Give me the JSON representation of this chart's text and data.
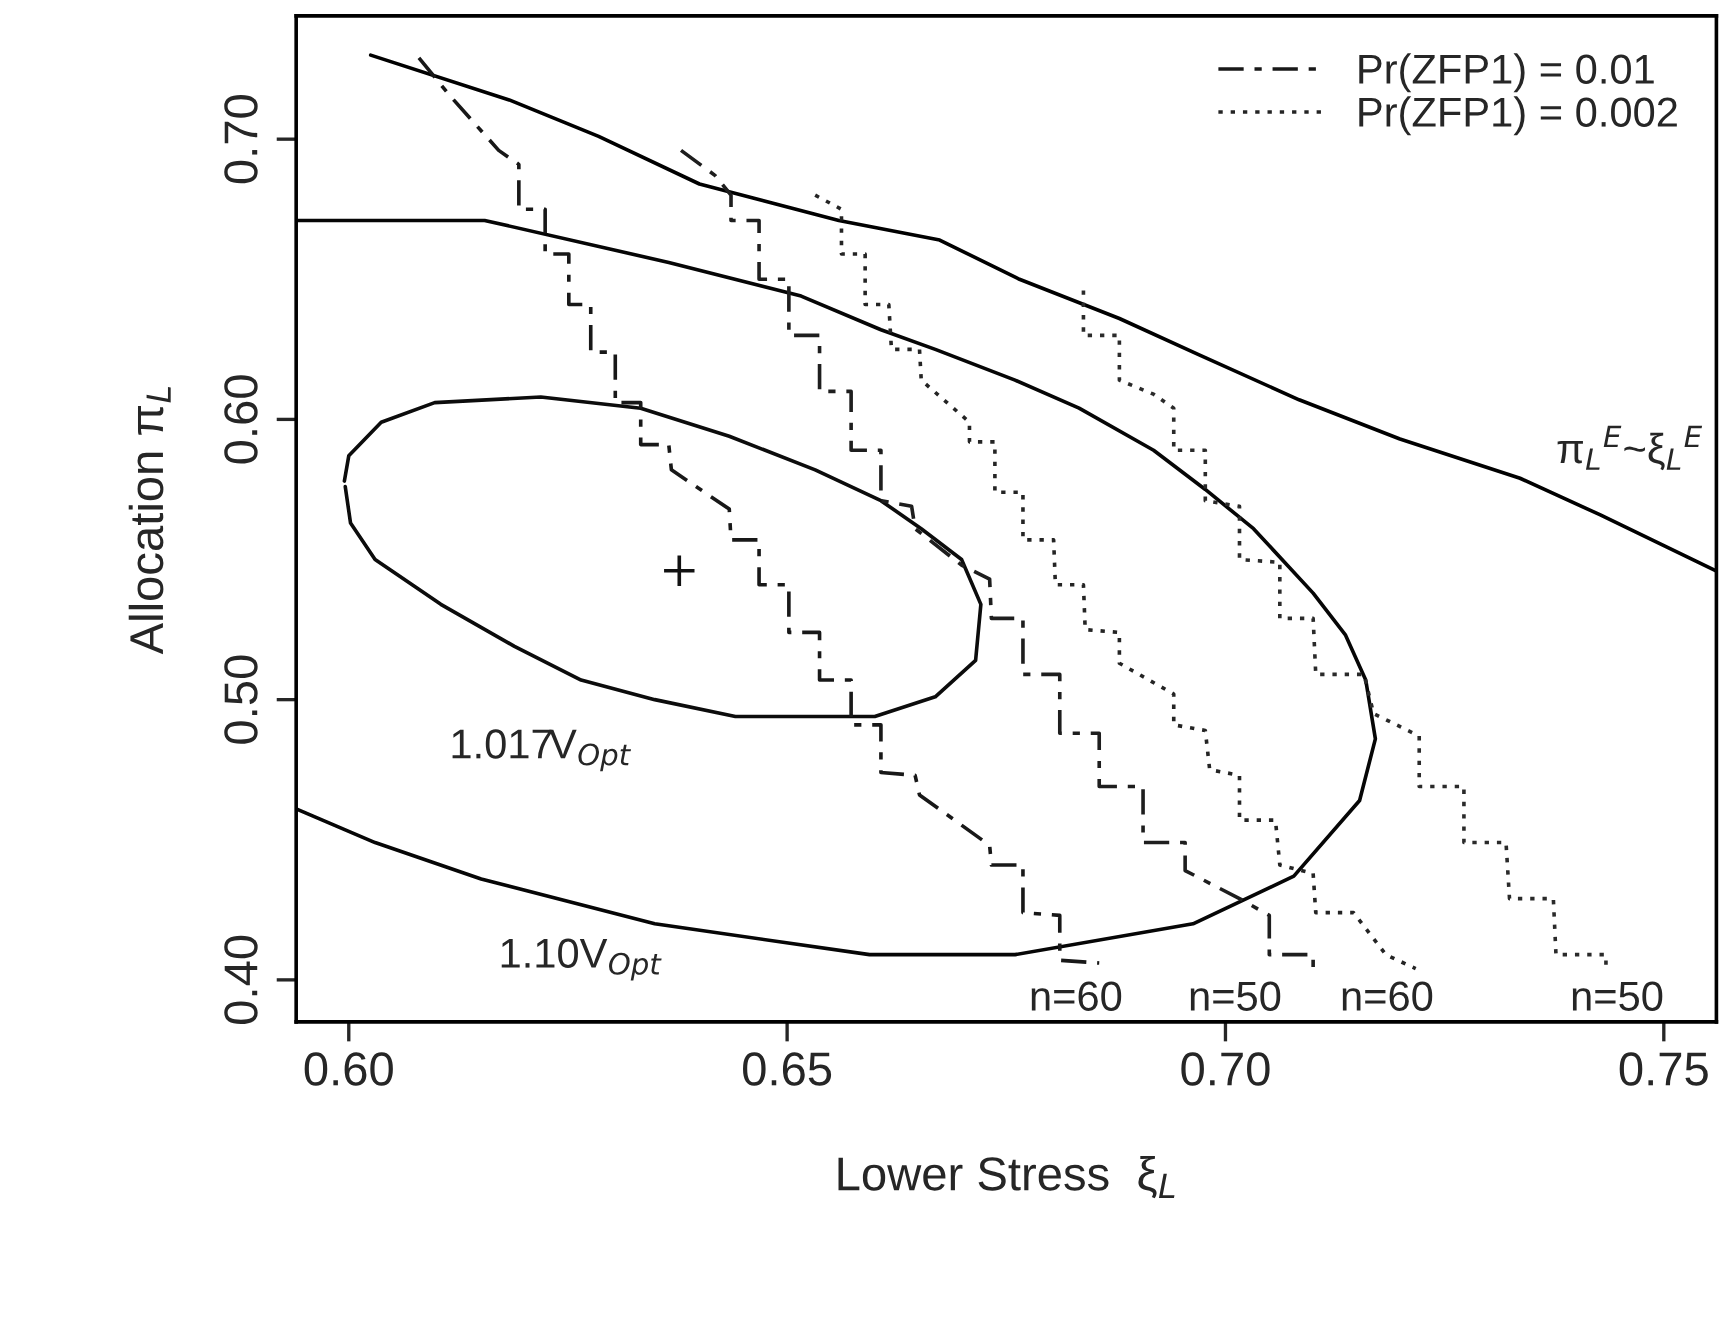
{
  "chart_data": {
    "type": "line",
    "xlabel": "Lower Stress  ξ$_{L}$",
    "ylabel": "Allocation π$_{L}$",
    "xlim": [
      0.594,
      0.756
    ],
    "ylim": [
      0.385,
      0.744
    ],
    "xticks": [
      {
        "value": 0.6,
        "label": "0.60"
      },
      {
        "value": 0.65,
        "label": "0.65"
      },
      {
        "value": 0.7,
        "label": "0.70"
      },
      {
        "value": 0.75,
        "label": "0.75"
      }
    ],
    "yticks": [
      {
        "value": 0.4,
        "label": "0.40"
      },
      {
        "value": 0.5,
        "label": "0.50"
      },
      {
        "value": 0.6,
        "label": "0.60"
      },
      {
        "value": 0.7,
        "label": "0.70"
      }
    ],
    "grid": false,
    "legend": "top right",
    "series": [
      {
        "line_style": "solid",
        "color": "#000000",
        "x": [
          0.6025,
          0.6183,
          0.6285,
          0.64,
          0.6559,
          0.6674,
          0.6765,
          0.6879,
          0.697,
          0.7084,
          0.7199,
          0.7336,
          0.7427,
          0.7559
        ],
        "values": [
          0.73,
          0.714,
          0.701,
          0.684,
          0.671,
          0.664,
          0.65,
          0.636,
          0.623,
          0.607,
          0.593,
          0.579,
          0.566,
          0.546
        ]
      },
      {
        "line_style": "solid",
        "color": "#060606",
        "x": [
          0.594,
          0.6155,
          0.6365,
          0.6516,
          0.6607,
          0.6669,
          0.676,
          0.6833,
          0.6918,
          0.6977,
          0.7032,
          0.71,
          0.7137,
          0.716,
          0.7171,
          0.7153,
          0.7078,
          0.6963,
          0.676,
          0.6594,
          0.6349,
          0.6151,
          0.603,
          0.594
        ],
        "values": [
          0.671,
          0.671,
          0.656,
          0.644,
          0.632,
          0.625,
          0.614,
          0.604,
          0.589,
          0.575,
          0.561,
          0.538,
          0.523,
          0.507,
          0.486,
          0.464,
          0.437,
          0.42,
          0.409,
          0.409,
          0.42,
          0.436,
          0.449,
          0.461
        ]
      },
      {
        "line_style": "solid",
        "color": "#0c0c0c",
        "x": [
          0.5995,
          0.6,
          0.6037,
          0.6098,
          0.6219,
          0.6333,
          0.6434,
          0.6532,
          0.6607,
          0.6653,
          0.6699,
          0.6721,
          0.6715,
          0.6669,
          0.66,
          0.6441,
          0.6349,
          0.6265,
          0.6189,
          0.6105,
          0.603,
          0.6002,
          0.5996
        ],
        "values": [
          0.578,
          0.587,
          0.599,
          0.606,
          0.608,
          0.604,
          0.594,
          0.582,
          0.571,
          0.561,
          0.55,
          0.534,
          0.514,
          0.501,
          0.494,
          0.494,
          0.5,
          0.507,
          0.519,
          0.534,
          0.55,
          0.563,
          0.576
        ]
      },
      {
        "type": "scatter",
        "marker": "cross",
        "color": "#121212",
        "x": [
          0.6377
        ],
        "values": [
          0.546
        ]
      },
      {
        "line_style": "dashed",
        "color": "#181818",
        "name": "Pr(ZFP1) = 0.01",
        "x": [
          0.608,
          0.6114,
          0.6171,
          0.6194,
          0.6194,
          0.6224,
          0.6224,
          0.6251,
          0.6251,
          0.6276,
          0.6276,
          0.6304,
          0.6304,
          0.6333,
          0.6333,
          0.6365,
          0.6368,
          0.6434,
          0.6436,
          0.6468,
          0.6468,
          0.6502,
          0.6502,
          0.6537,
          0.6537,
          0.6573,
          0.6573,
          0.6607,
          0.6607,
          0.6646,
          0.6651,
          0.6731,
          0.6733,
          0.6769,
          0.6769,
          0.6811,
          0.6811,
          0.6856
        ],
        "values": [
          0.729,
          0.716,
          0.696,
          0.691,
          0.675,
          0.675,
          0.659,
          0.659,
          0.641,
          0.641,
          0.624,
          0.624,
          0.606,
          0.606,
          0.591,
          0.591,
          0.582,
          0.568,
          0.557,
          0.557,
          0.541,
          0.541,
          0.524,
          0.524,
          0.507,
          0.507,
          0.491,
          0.491,
          0.474,
          0.473,
          0.466,
          0.448,
          0.441,
          0.441,
          0.424,
          0.423,
          0.407,
          0.406
        ]
      },
      {
        "line_style": "dashed",
        "color": "#1e1e1e",
        "x": [
          0.6379,
          0.6418,
          0.6436,
          0.6436,
          0.6468,
          0.6468,
          0.6502,
          0.6502,
          0.6537,
          0.6537,
          0.6573,
          0.6573,
          0.6607,
          0.6607,
          0.6642,
          0.6646,
          0.6699,
          0.6731,
          0.6733,
          0.6769,
          0.6769,
          0.6811,
          0.6811,
          0.6856,
          0.6856,
          0.6906,
          0.6906,
          0.6954,
          0.6954,
          0.7016,
          0.705,
          0.705,
          0.71,
          0.71
        ],
        "values": [
          0.696,
          0.687,
          0.68,
          0.671,
          0.671,
          0.65,
          0.65,
          0.63,
          0.63,
          0.61,
          0.61,
          0.589,
          0.589,
          0.571,
          0.569,
          0.561,
          0.548,
          0.543,
          0.529,
          0.529,
          0.509,
          0.509,
          0.488,
          0.488,
          0.469,
          0.469,
          0.449,
          0.449,
          0.439,
          0.429,
          0.423,
          0.409,
          0.409,
          0.404
        ]
      },
      {
        "line_style": "dotted",
        "color": "#242424",
        "name": "Pr(ZFP1) = 0.002",
        "x": [
          0.6532,
          0.6562,
          0.6562,
          0.6589,
          0.6589,
          0.6616,
          0.6619,
          0.6651,
          0.6653,
          0.6708,
          0.6708,
          0.6737,
          0.6737,
          0.6769,
          0.6769,
          0.6804,
          0.6806,
          0.6838,
          0.684,
          0.6879,
          0.6879,
          0.6941,
          0.6941,
          0.6977,
          0.6982,
          0.7016,
          0.7016,
          0.7057,
          0.7062,
          0.71,
          0.7103,
          0.7146,
          0.7183,
          0.7217
        ],
        "values": [
          0.68,
          0.675,
          0.659,
          0.659,
          0.641,
          0.641,
          0.625,
          0.625,
          0.614,
          0.599,
          0.592,
          0.592,
          0.574,
          0.574,
          0.557,
          0.557,
          0.541,
          0.541,
          0.525,
          0.524,
          0.513,
          0.502,
          0.491,
          0.489,
          0.475,
          0.473,
          0.457,
          0.457,
          0.441,
          0.438,
          0.424,
          0.424,
          0.409,
          0.404
        ]
      },
      {
        "line_style": "dotted",
        "color": "#2a2a2a",
        "x": [
          0.6838,
          0.6838,
          0.6879,
          0.6879,
          0.6918,
          0.6941,
          0.6941,
          0.6977,
          0.6977,
          0.7016,
          0.7016,
          0.7062,
          0.7062,
          0.71,
          0.7103,
          0.7158,
          0.7169,
          0.7221,
          0.7221,
          0.7272,
          0.7272,
          0.732,
          0.7324,
          0.7374,
          0.7377,
          0.7434,
          0.7434
        ],
        "values": [
          0.646,
          0.63,
          0.63,
          0.614,
          0.609,
          0.604,
          0.589,
          0.589,
          0.571,
          0.569,
          0.55,
          0.549,
          0.529,
          0.529,
          0.509,
          0.509,
          0.495,
          0.487,
          0.469,
          0.469,
          0.449,
          0.449,
          0.429,
          0.429,
          0.409,
          0.409,
          0.404
        ]
      }
    ],
    "annotations": [
      "π$_{L}$$^{E}$~ξ$_{L}$$^{E}$",
      "1.017V$_{Opt}$",
      "1.10V$_{Opt}$",
      "n=60",
      "n=50",
      "n=60",
      "n=50"
    ]
  }
}
